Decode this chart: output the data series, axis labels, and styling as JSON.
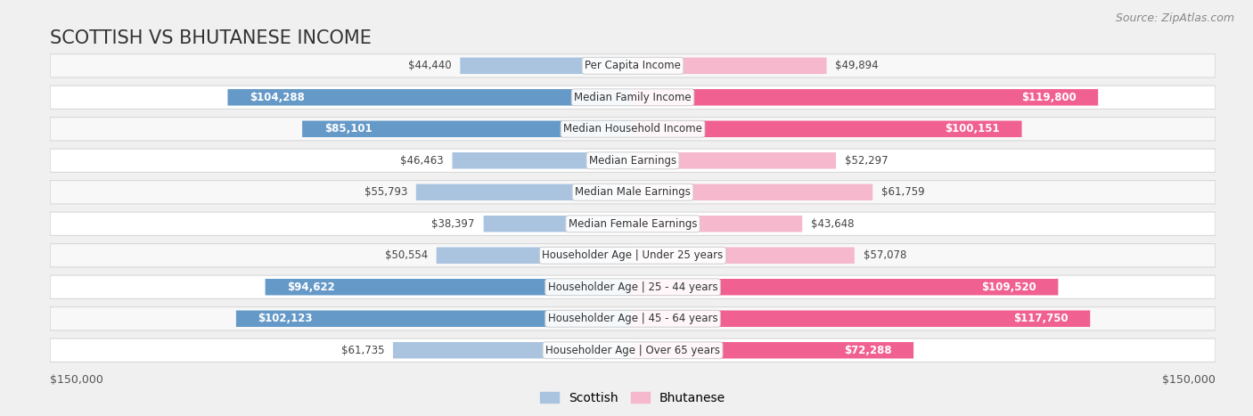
{
  "title": "SCOTTISH VS BHUTANESE INCOME",
  "source": "Source: ZipAtlas.com",
  "categories": [
    "Per Capita Income",
    "Median Family Income",
    "Median Household Income",
    "Median Earnings",
    "Median Male Earnings",
    "Median Female Earnings",
    "Householder Age | Under 25 years",
    "Householder Age | 25 - 44 years",
    "Householder Age | 45 - 64 years",
    "Householder Age | Over 65 years"
  ],
  "scottish": [
    44440,
    104288,
    85101,
    46463,
    55793,
    38397,
    50554,
    94622,
    102123,
    61735
  ],
  "bhutanese": [
    49894,
    119800,
    100151,
    52297,
    61759,
    43648,
    57078,
    109520,
    117750,
    72288
  ],
  "scottish_labels": [
    "$44,440",
    "$104,288",
    "$85,101",
    "$46,463",
    "$55,793",
    "$38,397",
    "$50,554",
    "$94,622",
    "$102,123",
    "$61,735"
  ],
  "bhutanese_labels": [
    "$49,894",
    "$119,800",
    "$100,151",
    "$52,297",
    "$61,759",
    "$43,648",
    "$57,078",
    "$109,520",
    "$117,750",
    "$72,288"
  ],
  "scottish_color_light": "#aac4e0",
  "scottish_color_dark": "#6599c8",
  "bhutanese_color_light": "#f5b8cc",
  "bhutanese_color_dark": "#f06090",
  "max_val": 150000,
  "background_color": "#f0f0f0",
  "row_bg_even": "#f8f8f8",
  "row_bg_odd": "#ffffff",
  "title_fontsize": 15,
  "label_fontsize": 8.5,
  "category_fontsize": 8.5,
  "legend_fontsize": 10,
  "source_fontsize": 9,
  "inside_label_threshold": 65000
}
